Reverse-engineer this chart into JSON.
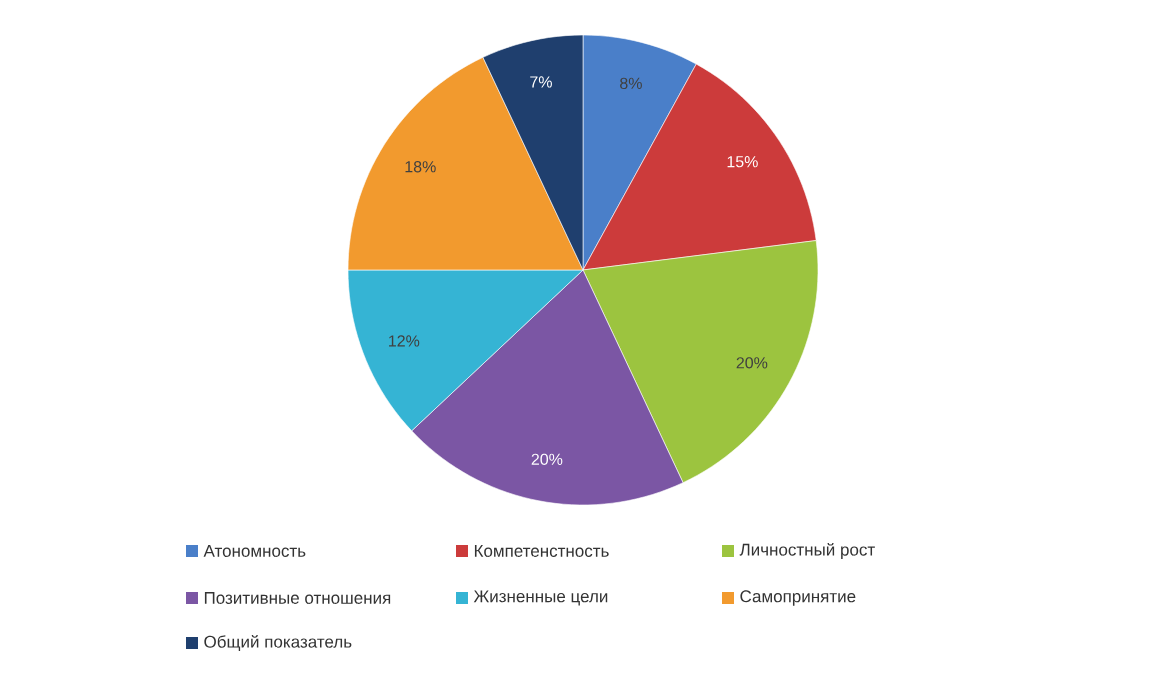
{
  "chart_data": {
    "type": "pie",
    "categories": [
      "Атономность",
      "Компетенстность",
      "Личностный рост",
      "Позитивные отношения",
      "Жизненные цели",
      "Самопринятие",
      "Общий показатель"
    ],
    "values": [
      8,
      15,
      20,
      20,
      12,
      18,
      7
    ],
    "colors": [
      "#4a7fc9",
      "#cc3b3b",
      "#9cc43f",
      "#7b56a4",
      "#35b4d4",
      "#f29a2e",
      "#1f3f6e"
    ],
    "value_labels": [
      "8%",
      "15%",
      "20%",
      "20%",
      "12%",
      "18%",
      "7%"
    ],
    "legend": "bottom"
  }
}
